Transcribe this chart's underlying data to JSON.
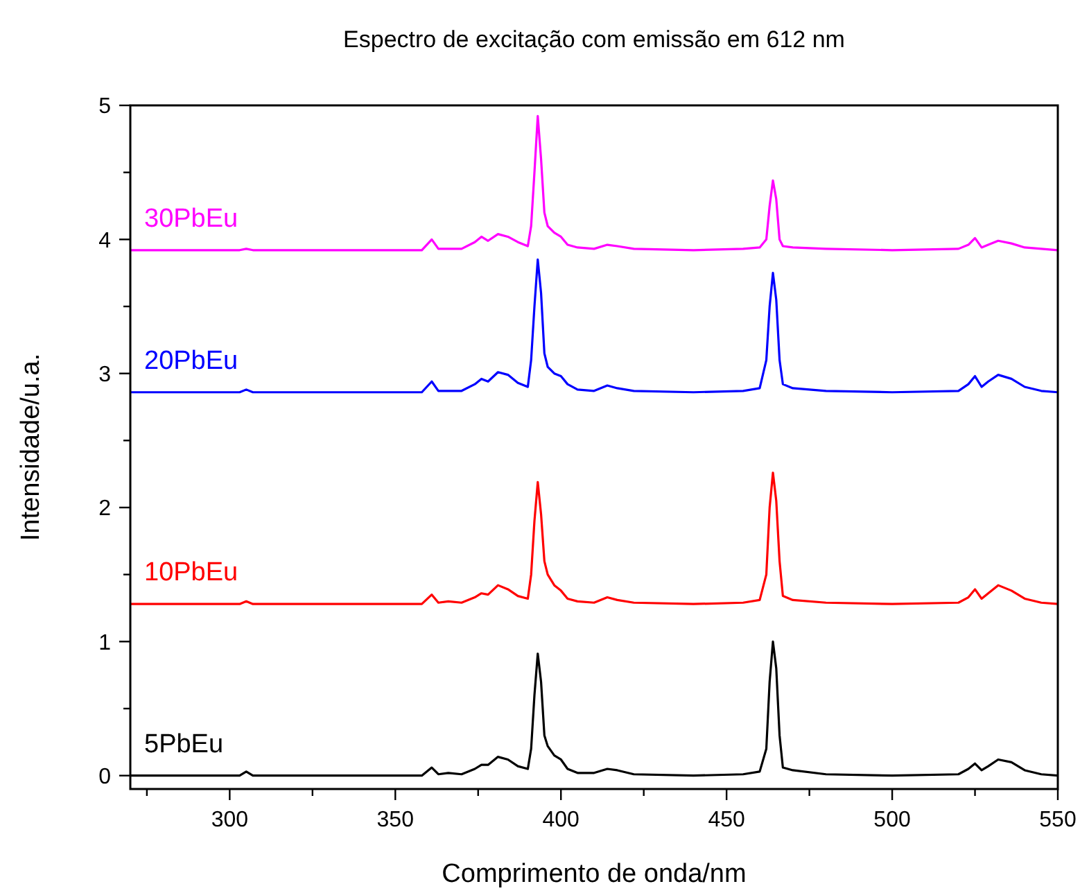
{
  "chart_data": {
    "type": "line",
    "title": "Espectro de excitação com emissão em 612 nm",
    "xlabel": "Comprimento de onda/nm",
    "ylabel": "Intensidade/u.a.",
    "x": [
      270,
      290,
      303,
      305,
      307,
      330,
      358,
      361,
      363,
      366,
      370,
      374,
      376,
      378,
      381,
      384,
      387,
      390,
      391,
      392,
      393,
      394,
      395,
      396,
      398,
      400,
      402,
      405,
      410,
      414,
      417,
      422,
      440,
      455,
      460,
      462,
      463,
      464,
      465,
      466,
      467,
      470,
      480,
      500,
      520,
      523,
      525,
      527,
      529,
      532,
      536,
      540,
      545,
      550
    ],
    "series": [
      {
        "name": "5PbEu",
        "color": "#000000",
        "values": [
          0,
          0,
          0,
          0.03,
          0,
          0,
          0,
          0.06,
          0.01,
          0.02,
          0.01,
          0.05,
          0.08,
          0.08,
          0.14,
          0.12,
          0.07,
          0.05,
          0.2,
          0.6,
          0.91,
          0.7,
          0.3,
          0.22,
          0.15,
          0.12,
          0.05,
          0.02,
          0.02,
          0.05,
          0.04,
          0.01,
          0,
          0.01,
          0.03,
          0.2,
          0.7,
          1.0,
          0.8,
          0.3,
          0.06,
          0.04,
          0.01,
          0,
          0.01,
          0.05,
          0.09,
          0.04,
          0.07,
          0.12,
          0.1,
          0.04,
          0.01,
          0
        ]
      },
      {
        "name": "10PbEu",
        "color": "#ff0000",
        "values": [
          1.28,
          1.28,
          1.28,
          1.3,
          1.28,
          1.28,
          1.28,
          1.35,
          1.29,
          1.3,
          1.29,
          1.33,
          1.36,
          1.35,
          1.42,
          1.39,
          1.34,
          1.32,
          1.5,
          1.9,
          2.19,
          1.95,
          1.6,
          1.5,
          1.42,
          1.38,
          1.32,
          1.3,
          1.29,
          1.33,
          1.31,
          1.29,
          1.28,
          1.29,
          1.31,
          1.5,
          2.0,
          2.26,
          2.05,
          1.6,
          1.34,
          1.31,
          1.29,
          1.28,
          1.29,
          1.33,
          1.39,
          1.32,
          1.36,
          1.42,
          1.38,
          1.32,
          1.29,
          1.28
        ]
      },
      {
        "name": "20PbEu",
        "color": "#0000ff",
        "values": [
          2.86,
          2.86,
          2.86,
          2.88,
          2.86,
          2.86,
          2.86,
          2.94,
          2.87,
          2.87,
          2.87,
          2.92,
          2.96,
          2.94,
          3.01,
          2.99,
          2.93,
          2.9,
          3.1,
          3.5,
          3.85,
          3.6,
          3.15,
          3.05,
          3.0,
          2.98,
          2.92,
          2.88,
          2.87,
          2.91,
          2.89,
          2.87,
          2.86,
          2.87,
          2.89,
          3.1,
          3.5,
          3.75,
          3.55,
          3.1,
          2.92,
          2.89,
          2.87,
          2.86,
          2.87,
          2.92,
          2.98,
          2.9,
          2.94,
          2.99,
          2.96,
          2.9,
          2.87,
          2.86
        ]
      },
      {
        "name": "30PbEu",
        "color": "#ff00ff",
        "values": [
          3.92,
          3.92,
          3.92,
          3.93,
          3.92,
          3.92,
          3.92,
          4.0,
          3.93,
          3.93,
          3.93,
          3.98,
          4.02,
          3.99,
          4.04,
          4.02,
          3.98,
          3.95,
          4.1,
          4.5,
          4.92,
          4.6,
          4.2,
          4.1,
          4.05,
          4.02,
          3.96,
          3.94,
          3.93,
          3.96,
          3.95,
          3.93,
          3.92,
          3.93,
          3.94,
          4.0,
          4.25,
          4.44,
          4.3,
          4.0,
          3.95,
          3.94,
          3.93,
          3.92,
          3.93,
          3.96,
          4.01,
          3.94,
          3.96,
          3.99,
          3.97,
          3.94,
          3.93,
          3.92
        ]
      }
    ],
    "xlim": [
      270,
      550
    ],
    "xticks": [
      {
        "value": 275,
        "label": null
      },
      300,
      {
        "value": 325,
        "label": null
      },
      350,
      {
        "value": 375,
        "label": null
      },
      400,
      {
        "value": 425,
        "label": null
      },
      450,
      {
        "value": 475,
        "label": null
      },
      500,
      {
        "value": 525,
        "label": null
      },
      550
    ],
    "ylim": [
      -0.1,
      5
    ],
    "yticks": [
      0,
      {
        "value": 0.5,
        "label": null
      },
      1,
      {
        "value": 1.5,
        "label": null
      },
      2,
      {
        "value": 2.5,
        "label": null
      },
      3,
      {
        "value": 3.5,
        "label": null
      },
      4,
      {
        "value": 4.5,
        "label": null
      },
      5
    ],
    "grid": false,
    "legend": false,
    "marker": "none",
    "line_style": "solid"
  }
}
